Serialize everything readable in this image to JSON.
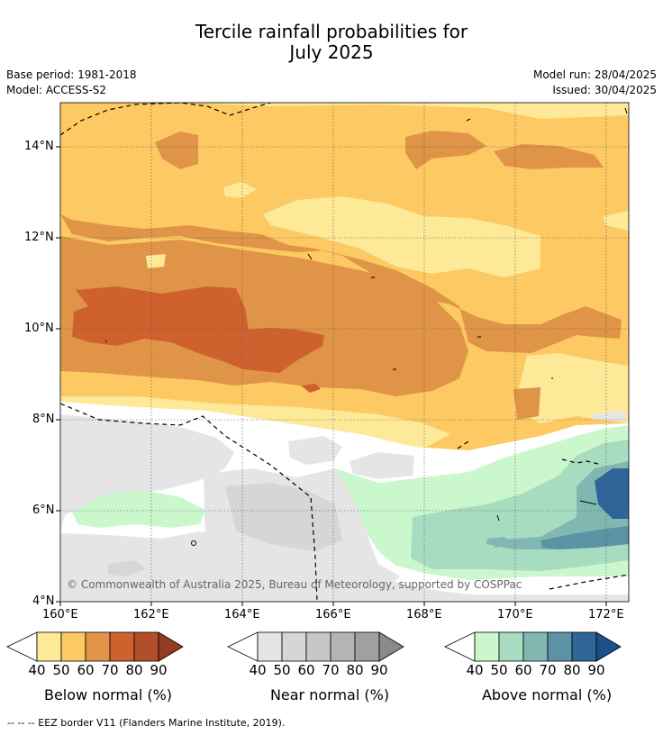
{
  "title_line1": "Tercile rainfall probabilities for",
  "title_line2": "July 2025",
  "base_period": "Base period: 1981-2018",
  "model": "Model: ACCESS-S2",
  "model_run": "Model run: 28/04/2025",
  "issued": "Issued: 30/04/2025",
  "lat_labels": [
    "14°N",
    "12°N",
    "10°N",
    "8°N",
    "6°N",
    "4°N"
  ],
  "lon_labels": [
    "160°E",
    "162°E",
    "164°E",
    "166°E",
    "168°E",
    "170°E",
    "172°E"
  ],
  "copyright": "© Commonwealth of Australia 2025, Bureau of Meteorology, supported by COSPPac",
  "colorbars": [
    {
      "label": "Below normal (%)",
      "ticks": [
        "40",
        "50",
        "60",
        "70",
        "80",
        "90"
      ],
      "colors": [
        "#fee999",
        "#fdc962",
        "#e09447",
        "#cf612f",
        "#b24f2b",
        "#963b23"
      ]
    },
    {
      "label": "Near normal (%)",
      "ticks": [
        "40",
        "50",
        "60",
        "70",
        "80",
        "90"
      ],
      "colors": [
        "#e5e5e5",
        "#d6d6d6",
        "#c7c7c7",
        "#b4b4b4",
        "#a0a0a0",
        "#8a8a8a"
      ]
    },
    {
      "label": "Above normal (%)",
      "ticks": [
        "40",
        "50",
        "60",
        "70",
        "80",
        "90"
      ],
      "colors": [
        "#cbf7cd",
        "#a8dcc0",
        "#80b8b1",
        "#5b93a4",
        "#2f6598",
        "#1f4f8a"
      ]
    }
  ],
  "footnote": "--  --  -- EEZ border V11 (Flanders Marine Institute, 2019)."
}
